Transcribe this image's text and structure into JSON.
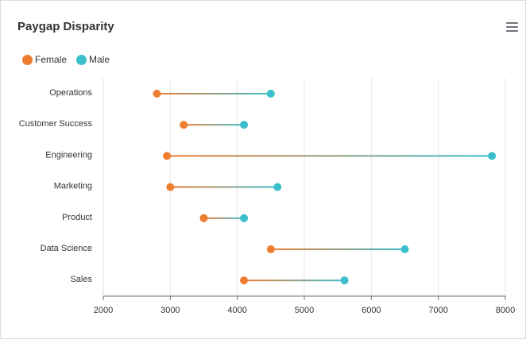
{
  "header": {
    "title": "Paygap Disparity",
    "menu_icon": "hamburger-menu-icon"
  },
  "legend": [
    {
      "name": "Female",
      "color": "#ed7d31"
    },
    {
      "name": "Male",
      "color": "#3bbfcc"
    }
  ],
  "chart_data": {
    "type": "dumbbell",
    "orientation": "horizontal",
    "title": "Paygap Disparity",
    "categories": [
      "Operations",
      "Customer Success",
      "Engineering",
      "Marketing",
      "Product",
      "Data Science",
      "Sales"
    ],
    "series": [
      {
        "name": "Female",
        "color": "#ed7d31",
        "values": [
          2800,
          3200,
          2950,
          3000,
          3500,
          4500,
          4100
        ]
      },
      {
        "name": "Male",
        "color": "#3bbfcc",
        "values": [
          4500,
          4100,
          7800,
          4600,
          4100,
          6500,
          5600
        ]
      }
    ],
    "xlim": [
      2000,
      8000
    ],
    "xticks": [
      "2000",
      "3000",
      "4000",
      "5000",
      "6000",
      "7000",
      "8000"
    ],
    "grid": "vertical",
    "legend_position": "top-left"
  }
}
